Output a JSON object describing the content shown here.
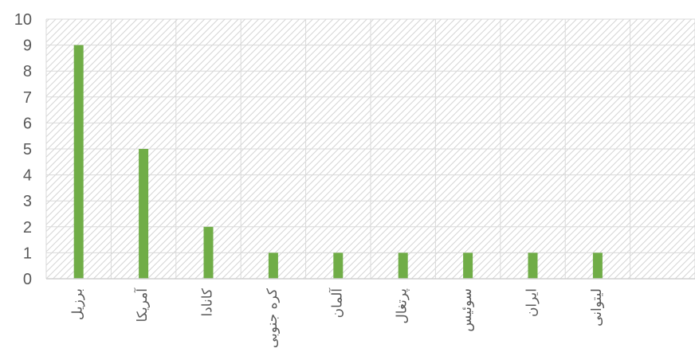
{
  "chart_data": {
    "type": "bar",
    "title": "",
    "xlabel": "",
    "ylabel": "",
    "categories": [
      "برزیل",
      "آمریکا",
      "کانادا",
      "کره جنوبی",
      "آلمان",
      "پرتغال",
      "سوئیس",
      "ایران",
      "لیتوانی",
      ""
    ],
    "values": [
      9,
      5,
      2,
      1,
      1,
      1,
      1,
      1,
      1,
      null
    ],
    "ylim": [
      0,
      10
    ],
    "yticks": [
      "0",
      "1",
      "2",
      "3",
      "4",
      "5",
      "6",
      "7",
      "8",
      "9",
      "10"
    ],
    "grid": true,
    "legend": "none",
    "bar_color": "#70ad47",
    "plot_background": "diagonal hatch"
  }
}
